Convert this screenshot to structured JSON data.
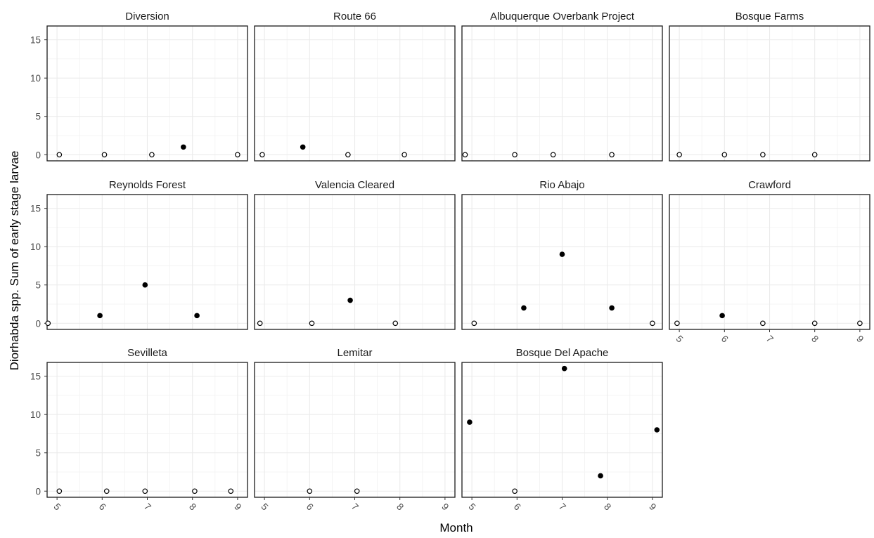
{
  "chart_data": {
    "type": "scatter",
    "xlabel": "Month",
    "ylabel": "Diorhabda spp. Sum of early stage larvae",
    "xlim": [
      4.78,
      9.22
    ],
    "ylim": [
      -0.8,
      16.8
    ],
    "xticks": [
      5,
      6,
      7,
      8,
      9
    ],
    "yticks": [
      0,
      5,
      10,
      15
    ],
    "grid": true,
    "legend": "none",
    "marker_note": "filled = count above zero, open = zero",
    "panels": [
      {
        "name": "Diversion",
        "x": [
          5.05,
          6.05,
          7.1,
          7.8,
          9.0
        ],
        "y": [
          0,
          0,
          0,
          1,
          0
        ]
      },
      {
        "name": "Route 66",
        "x": [
          4.95,
          5.85,
          6.85,
          8.1
        ],
        "y": [
          0,
          1,
          0,
          0
        ]
      },
      {
        "name": "Albuquerque Overbank Project",
        "x": [
          4.85,
          5.95,
          6.8,
          8.1
        ],
        "y": [
          0,
          0,
          0,
          0
        ]
      },
      {
        "name": "Bosque Farms",
        "x": [
          5.0,
          6.0,
          6.85,
          8.0
        ],
        "y": [
          0,
          0,
          0,
          0
        ]
      },
      {
        "name": "Reynolds Forest",
        "x": [
          4.8,
          5.95,
          6.95,
          8.1
        ],
        "y": [
          0,
          1,
          5,
          1
        ]
      },
      {
        "name": "Valencia Cleared",
        "x": [
          4.9,
          6.05,
          6.9,
          7.9
        ],
        "y": [
          0,
          0,
          3,
          0
        ]
      },
      {
        "name": "Rio Abajo",
        "x": [
          5.05,
          6.15,
          7.0,
          8.1,
          9.0
        ],
        "y": [
          0,
          2,
          9,
          2,
          0
        ]
      },
      {
        "name": "Crawford",
        "x": [
          4.95,
          5.95,
          6.85,
          8.0,
          9.0
        ],
        "y": [
          0,
          1,
          0,
          0,
          0
        ]
      },
      {
        "name": "Sevilleta",
        "x": [
          5.05,
          6.1,
          6.95,
          8.05,
          8.85
        ],
        "y": [
          0,
          0,
          0,
          0,
          0
        ]
      },
      {
        "name": "Lemitar",
        "x": [
          6.0,
          7.05
        ],
        "y": [
          0,
          0
        ]
      },
      {
        "name": "Bosque Del Apache",
        "x": [
          4.95,
          5.95,
          7.05,
          7.85,
          9.1
        ],
        "y": [
          9,
          0,
          16,
          2,
          8
        ]
      }
    ]
  }
}
